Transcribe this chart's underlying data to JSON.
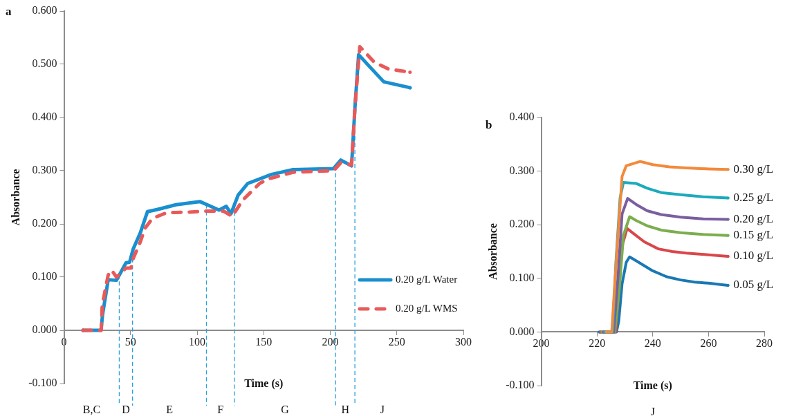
{
  "chart_data": [
    {
      "type": "line",
      "title": "a",
      "xlabel": "Time (s)",
      "ylabel": "Absorbance",
      "xlim": [
        0,
        300
      ],
      "xticks": [
        0,
        50,
        100,
        150,
        200,
        250,
        300
      ],
      "ylim": [
        -0.1,
        0.6
      ],
      "yticks": [
        {
          "value": -0.1,
          "label": "-0.100"
        },
        {
          "value": 0,
          "label": "0.000"
        },
        {
          "value": 0.1,
          "label": "0.100"
        },
        {
          "value": 0.2,
          "label": "0.200"
        },
        {
          "value": 0.3,
          "label": "0.300"
        },
        {
          "value": 0.4,
          "label": "0.400"
        },
        {
          "value": 0.5,
          "label": "0.500"
        },
        {
          "value": 0.6,
          "label": "0.600"
        }
      ],
      "legend": "bottom right",
      "series": [
        {
          "name": "0.20 g/L Water",
          "color": "#1a8fcf",
          "line_style": "solid",
          "x": [
            14.3,
            27.8,
            29,
            33.2,
            39.4,
            46.6,
            49.3,
            52,
            57.3,
            62.7,
            69.9,
            84.2,
            102,
            107.5,
            116.5,
            121.9,
            125.4,
            130.8,
            138,
            155.9,
            172,
            202.5,
            207.9,
            216,
            218.6,
            221.3,
            229.4,
            240.2,
            259.9
          ],
          "values": [
            0,
            0,
            0.03,
            0.095,
            0.094,
            0.127,
            0.128,
            0.153,
            0.183,
            0.223,
            0.227,
            0.236,
            0.242,
            0.236,
            0.226,
            0.233,
            0.219,
            0.254,
            0.276,
            0.293,
            0.302,
            0.304,
            0.32,
            0.309,
            0.421,
            0.518,
            0.496,
            0.467,
            0.456
          ]
        },
        {
          "name": "0.20 g/L WMS",
          "color": "#e85a5a",
          "line_style": "dashed",
          "x": [
            14.3,
            28,
            28.7,
            33.2,
            35.8,
            39.4,
            46.6,
            50.2,
            52,
            57.3,
            60.9,
            66.3,
            77,
            93.2,
            105.7,
            120,
            126.3,
            134.4,
            146.9,
            154.1,
            172,
            202.5,
            207.9,
            216,
            218.6,
            222.2,
            233,
            243.7,
            259.9
          ],
          "values": [
            0,
            0,
            0.047,
            0.104,
            0.113,
            0.1,
            0.117,
            0.117,
            0.135,
            0.166,
            0.192,
            0.21,
            0.221,
            0.222,
            0.224,
            0.224,
            0.214,
            0.245,
            0.276,
            0.285,
            0.297,
            0.3,
            0.315,
            0.311,
            0.421,
            0.533,
            0.504,
            0.491,
            0.485
          ]
        }
      ],
      "ref_lines": [
        {
          "axis": "x",
          "value": 41.5,
          "color": "#2aa0dc",
          "line_style": "dashed"
        },
        {
          "axis": "x",
          "value": 51.5,
          "color": "#2aa0dc",
          "line_style": "dashed"
        },
        {
          "axis": "x",
          "value": 107,
          "color": "#2aa0dc",
          "line_style": "dashed"
        },
        {
          "axis": "x",
          "value": 128,
          "color": "#2aa0dc",
          "line_style": "dashed"
        },
        {
          "axis": "x",
          "value": 204,
          "color": "#2aa0dc",
          "line_style": "dashed"
        },
        {
          "axis": "x",
          "value": 218.5,
          "color": "#2aa0dc",
          "line_style": "dashed"
        }
      ],
      "annotations": [
        "B,C",
        "D",
        "E",
        "F",
        "G",
        "H",
        "J"
      ]
    },
    {
      "type": "line",
      "title": "b",
      "xlabel": "Time (s)",
      "ylabel": "Absorbance",
      "xlim": [
        200,
        280
      ],
      "xticks": [
        200,
        220,
        240,
        260,
        280
      ],
      "ylim": [
        -0.1,
        0.4
      ],
      "yticks": [
        {
          "value": -0.1,
          "label": "-0.100"
        },
        {
          "value": 0,
          "label": "0.000"
        },
        {
          "value": 0.1,
          "label": "0.100"
        },
        {
          "value": 0.2,
          "label": "0.200"
        },
        {
          "value": 0.3,
          "label": "0.300"
        },
        {
          "value": 0.4,
          "label": "0.400"
        }
      ],
      "annotations": [
        "J"
      ],
      "series": [
        {
          "name": "0.05 g/L",
          "color": "#1a78b4",
          "x": [
            220.8,
            227,
            227.8,
            229,
            230.5,
            231.7,
            234,
            240,
            245,
            250,
            255,
            260,
            267
          ],
          "values": [
            0,
            0,
            0.02,
            0.09,
            0.13,
            0.14,
            0.133,
            0.114,
            0.103,
            0.097,
            0.093,
            0.091,
            0.087
          ]
        },
        {
          "name": "0.10 g/L",
          "color": "#d9474a",
          "x": [
            221.3,
            226.7,
            227.6,
            229,
            230.8,
            233,
            237,
            242,
            247,
            252,
            260,
            267
          ],
          "values": [
            0,
            0,
            0.06,
            0.16,
            0.193,
            0.184,
            0.168,
            0.155,
            0.15,
            0.147,
            0.144,
            0.141
          ]
        },
        {
          "name": "0.15 g/L",
          "color": "#7aae4e",
          "x": [
            221.8,
            226.4,
            228,
            229.5,
            231.7,
            234,
            238,
            243,
            250,
            258,
            267
          ],
          "values": [
            0,
            0,
            0.08,
            0.18,
            0.215,
            0.208,
            0.198,
            0.19,
            0.185,
            0.182,
            0.18
          ]
        },
        {
          "name": "0.20 g/L",
          "color": "#7a5ea0",
          "x": [
            222.3,
            226,
            227.5,
            229,
            231,
            234,
            238,
            243,
            250,
            258,
            267
          ],
          "values": [
            0,
            0,
            0.1,
            0.22,
            0.249,
            0.238,
            0.226,
            0.219,
            0.214,
            0.211,
            0.21
          ]
        },
        {
          "name": "0.25 g/L",
          "color": "#1aabbc",
          "x": [
            222.8,
            225.6,
            226.8,
            228.3,
            229.5,
            234,
            238,
            243,
            250,
            258,
            267
          ],
          "values": [
            0,
            0,
            0.13,
            0.25,
            0.279,
            0.277,
            0.268,
            0.26,
            0.256,
            0.252,
            0.25
          ]
        },
        {
          "name": "0.30 g/L",
          "color": "#f28a3c",
          "x": [
            223.3,
            225.3,
            227,
            229,
            230.5,
            235.5,
            240,
            246,
            252,
            260,
            267
          ],
          "values": [
            0,
            0,
            0.14,
            0.29,
            0.31,
            0.318,
            0.312,
            0.308,
            0.306,
            0.304,
            0.303
          ]
        }
      ]
    }
  ]
}
